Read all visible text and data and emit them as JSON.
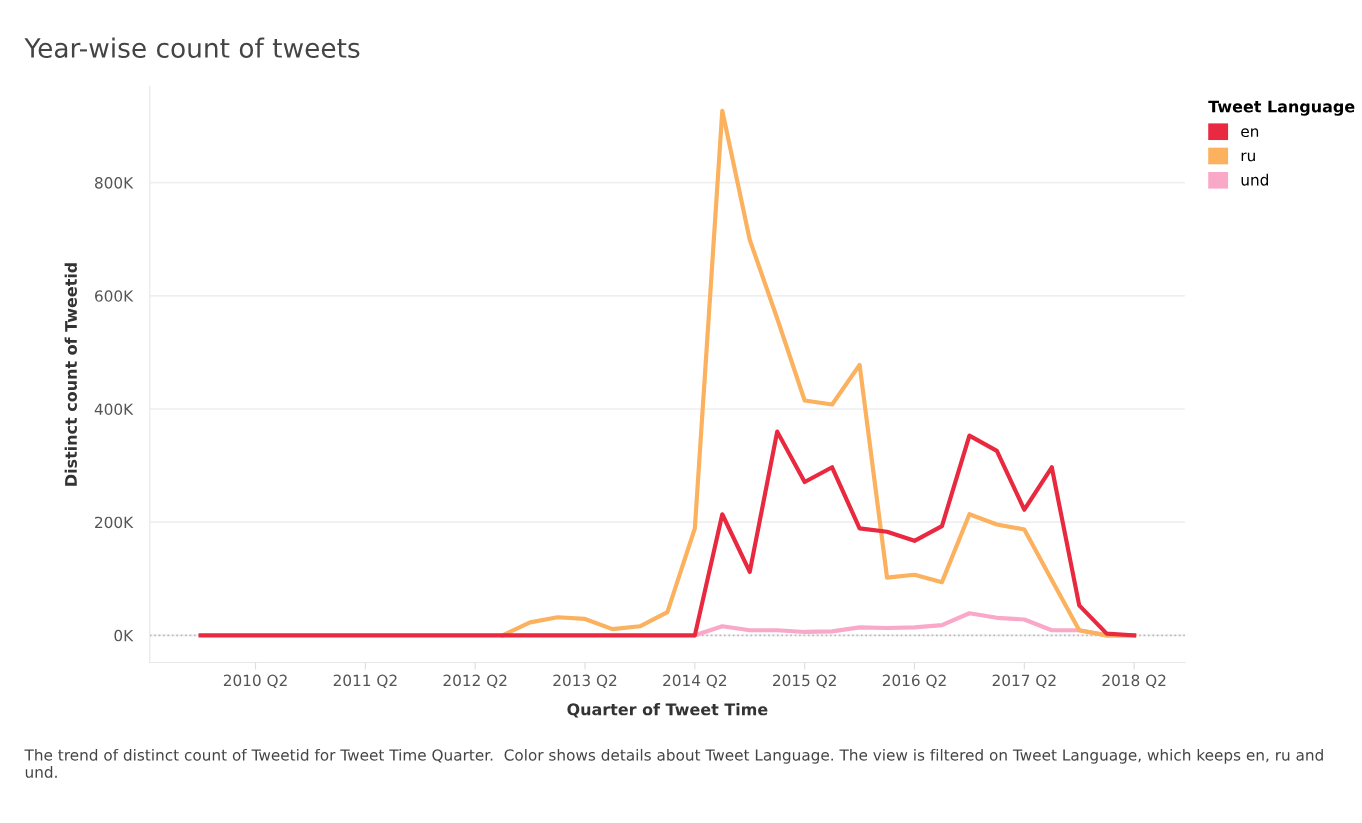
{
  "chart_data": {
    "type": "line",
    "title": "Year-wise count of tweets",
    "xlabel": "Quarter of Tweet Time",
    "ylabel": "Distinct count of Tweetid",
    "legend_title": "Tweet Language",
    "categories": [
      null,
      null,
      "2010 Q2",
      null,
      null,
      null,
      "2011 Q2",
      null,
      null,
      null,
      "2012 Q2",
      null,
      null,
      null,
      "2013 Q2",
      null,
      null,
      null,
      "2014 Q2",
      null,
      null,
      null,
      "2015 Q2",
      null,
      null,
      null,
      "2016 Q2",
      null,
      null,
      null,
      "2017 Q2",
      null,
      null,
      null,
      "2018 Q2"
    ],
    "series": [
      {
        "name": "en",
        "color": "#e8293f",
        "values": [
          0,
          0,
          0,
          0,
          0,
          0,
          0,
          0,
          0,
          0,
          0,
          0,
          0,
          0,
          0,
          0,
          0,
          0,
          0,
          214000,
          112000,
          360000,
          271000,
          297000,
          189000,
          183000,
          167000,
          193000,
          353000,
          326000,
          222000,
          297000,
          53000,
          3000,
          0
        ]
      },
      {
        "name": "ru",
        "color": "#fbb15e",
        "values": [
          null,
          null,
          null,
          null,
          null,
          null,
          null,
          null,
          null,
          null,
          null,
          0,
          23000,
          32000,
          29000,
          11000,
          16000,
          41000,
          189000,
          927000,
          699000,
          560000,
          415000,
          408000,
          478000,
          102000,
          107000,
          94000,
          214000,
          196000,
          187000,
          98000,
          9000,
          0,
          0
        ]
      },
      {
        "name": "und",
        "color": "#f9a8c8",
        "values": [
          null,
          null,
          null,
          null,
          null,
          null,
          null,
          null,
          null,
          null,
          null,
          null,
          null,
          null,
          null,
          null,
          null,
          null,
          0,
          16000,
          9000,
          9000,
          6000,
          7000,
          14000,
          13000,
          14000,
          18000,
          39000,
          31000,
          28000,
          9000,
          9000,
          0,
          0
        ]
      }
    ],
    "ylim": [
      -48000,
      970000
    ],
    "yticks": [
      {
        "value": 0,
        "label": "0K"
      },
      {
        "value": 200000,
        "label": "200K"
      },
      {
        "value": 400000,
        "label": "400K"
      },
      {
        "value": 600000,
        "label": "600K"
      },
      {
        "value": 800000,
        "label": "800K"
      }
    ],
    "ref_lines": [
      {
        "axis": "y",
        "value": 0,
        "color": "#bbbbbb",
        "line_style": "dotted"
      }
    ],
    "grid": "y",
    "legend": "top right",
    "marker": "none",
    "line_style": "solid",
    "annotations": [
      "The trend of distinct count of Tweetid for Tweet Time Quarter.  Color shows details about Tweet Language. The view is filtered on Tweet Language, which keeps en, ru and und."
    ]
  }
}
